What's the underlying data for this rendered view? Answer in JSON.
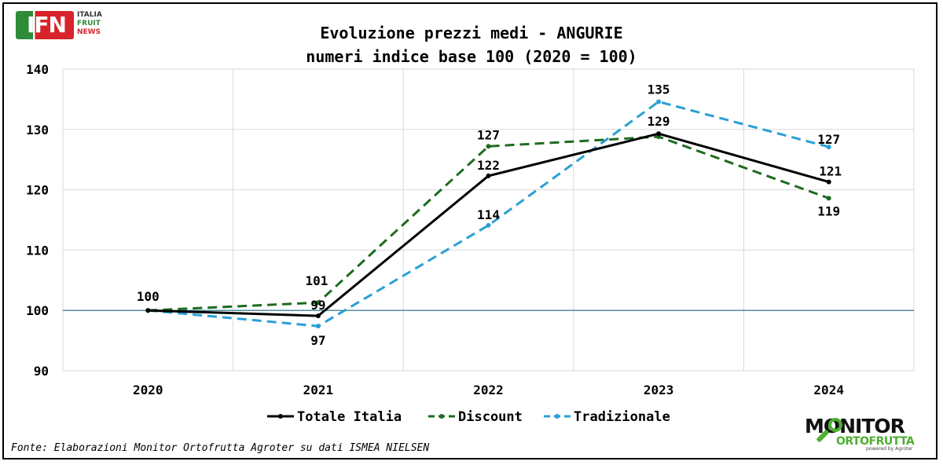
{
  "chart_data": {
    "type": "line",
    "title": "Evoluzione prezzi medi - ANGURIE",
    "subtitle": "numeri indice base 100 (2020 = 100)",
    "x": [
      "2020",
      "2021",
      "2022",
      "2023",
      "2024"
    ],
    "ylim": [
      90,
      140
    ],
    "yticks": [
      90,
      100,
      110,
      120,
      130,
      140
    ],
    "reference_line": 100,
    "grid": true,
    "legend_position": "bottom",
    "series": [
      {
        "name": "Totale Italia",
        "values": [
          100,
          99.1,
          122.3,
          129.3,
          121.3
        ],
        "labels": [
          "100",
          "99",
          "122",
          "129",
          "121"
        ],
        "color": "#000000",
        "style": "solid"
      },
      {
        "name": "Discount",
        "values": [
          100,
          101.3,
          127.2,
          128.8,
          118.6
        ],
        "labels": [
          "",
          "101",
          "127",
          "",
          "119"
        ],
        "color": "#1e6b1e",
        "style": "dashed"
      },
      {
        "name": "Tradizionale",
        "values": [
          100,
          97.4,
          114.1,
          134.6,
          127.1
        ],
        "labels": [
          "",
          "97",
          "114",
          "135",
          "127"
        ],
        "color": "#2aa0d4",
        "style": "dashed"
      }
    ]
  },
  "source": "Fonte: Elaborazioni Monitor Ortofrutta Agroter su dati ISMEA NIELSEN",
  "logo_ifn": {
    "letters": "IFN",
    "line1": "ITALIA",
    "line2": "FRUIT",
    "line3": "NEWS"
  },
  "logo_monitor": {
    "word1": "MONITOR",
    "word2": "ORTOFRUTTA",
    "word3": "powered by Agroter"
  }
}
